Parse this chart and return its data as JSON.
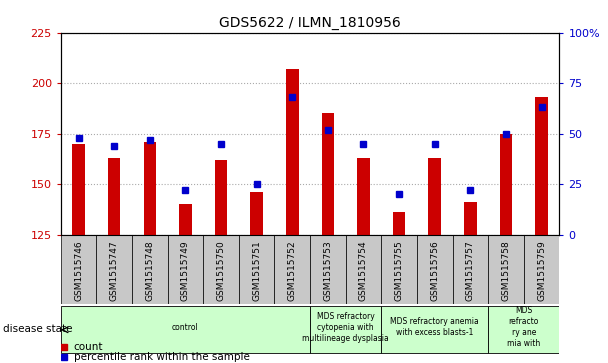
{
  "title": "GDS5622 / ILMN_1810956",
  "samples": [
    "GSM1515746",
    "GSM1515747",
    "GSM1515748",
    "GSM1515749",
    "GSM1515750",
    "GSM1515751",
    "GSM1515752",
    "GSM1515753",
    "GSM1515754",
    "GSM1515755",
    "GSM1515756",
    "GSM1515757",
    "GSM1515758",
    "GSM1515759"
  ],
  "counts": [
    170,
    163,
    171,
    140,
    162,
    146,
    207,
    185,
    163,
    136,
    163,
    141,
    175,
    193
  ],
  "percentiles": [
    48,
    44,
    47,
    22,
    45,
    25,
    68,
    52,
    45,
    20,
    45,
    22,
    50,
    63
  ],
  "ylim_left": [
    125,
    225
  ],
  "ylim_right": [
    0,
    100
  ],
  "yticks_left": [
    125,
    150,
    175,
    200,
    225
  ],
  "yticks_right": [
    0,
    25,
    50,
    75,
    100
  ],
  "bar_color": "#cc0000",
  "dot_color": "#0000cc",
  "tick_bg_color": "#c8c8c8",
  "plot_bg_color": "#ffffff",
  "disease_groups": [
    {
      "label": "control",
      "start": 0,
      "end": 7,
      "color": "#ccffcc"
    },
    {
      "label": "MDS refractory\ncytopenia with\nmultilineage dysplasia",
      "start": 7,
      "end": 9,
      "color": "#ccffcc"
    },
    {
      "label": "MDS refractory anemia\nwith excess blasts-1",
      "start": 9,
      "end": 12,
      "color": "#ccffcc"
    },
    {
      "label": "MDS\nrefracto\nry ane\nmia with",
      "start": 12,
      "end": 14,
      "color": "#ccffcc"
    }
  ],
  "legend_count_label": "count",
  "legend_pct_label": "percentile rank within the sample",
  "disease_state_label": "disease state",
  "bar_width": 0.35,
  "xlim": [
    -0.5,
    13.5
  ]
}
